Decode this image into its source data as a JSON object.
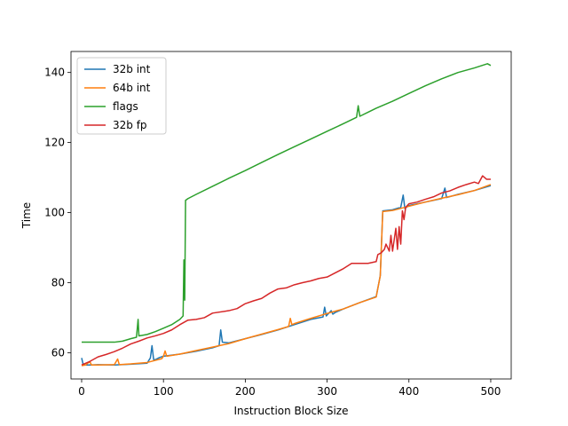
{
  "chart_data": {
    "type": "line",
    "title": "",
    "xlabel": "Instruction Block Size",
    "ylabel": "Time",
    "xlim": [
      -13,
      525
    ],
    "ylim": [
      52.5,
      146
    ],
    "xticks": [
      0,
      100,
      200,
      300,
      400,
      500
    ],
    "yticks": [
      60,
      80,
      100,
      120,
      140
    ],
    "grid": false,
    "legend_position": "upper-left",
    "series": [
      {
        "name": "32b int",
        "color": "#1f77b4",
        "points": [
          [
            0,
            58.5
          ],
          [
            2,
            56.5
          ],
          [
            10,
            56.5
          ],
          [
            20,
            56.6
          ],
          [
            40,
            56.5
          ],
          [
            60,
            56.7
          ],
          [
            80,
            57.0
          ],
          [
            84,
            58.5
          ],
          [
            86,
            62
          ],
          [
            88,
            58
          ],
          [
            90,
            58
          ],
          [
            95,
            58.6
          ],
          [
            100,
            59.0
          ],
          [
            120,
            59.6
          ],
          [
            140,
            60.4
          ],
          [
            160,
            61.4
          ],
          [
            168,
            62
          ],
          [
            170,
            66.5
          ],
          [
            172,
            63
          ],
          [
            180,
            62.8
          ],
          [
            200,
            64.0
          ],
          [
            220,
            65.2
          ],
          [
            240,
            66.5
          ],
          [
            260,
            68.0
          ],
          [
            280,
            69.5
          ],
          [
            295,
            70.2
          ],
          [
            297,
            73
          ],
          [
            299,
            70.5
          ],
          [
            305,
            72
          ],
          [
            307,
            71
          ],
          [
            310,
            71.5
          ],
          [
            320,
            72.5
          ],
          [
            340,
            74.3
          ],
          [
            360,
            76.0
          ],
          [
            365,
            82
          ],
          [
            368,
            100.5
          ],
          [
            380,
            100.8
          ],
          [
            390,
            101.5
          ],
          [
            393,
            105
          ],
          [
            395,
            101.2
          ],
          [
            400,
            102.0
          ],
          [
            420,
            103.0
          ],
          [
            440,
            104.0
          ],
          [
            444,
            107
          ],
          [
            446,
            104.3
          ],
          [
            460,
            105.2
          ],
          [
            480,
            106.3
          ],
          [
            500,
            107.7
          ]
        ]
      },
      {
        "name": "64b int",
        "color": "#ff7f0e",
        "points": [
          [
            0,
            56.3
          ],
          [
            5,
            56.5
          ],
          [
            10,
            57.5
          ],
          [
            12,
            56.5
          ],
          [
            20,
            56.5
          ],
          [
            40,
            56.6
          ],
          [
            44,
            58.2
          ],
          [
            46,
            56.6
          ],
          [
            60,
            56.8
          ],
          [
            80,
            57.2
          ],
          [
            90,
            57.8
          ],
          [
            98,
            58.3
          ],
          [
            100,
            59.0
          ],
          [
            102,
            60.5
          ],
          [
            104,
            59.0
          ],
          [
            120,
            59.6
          ],
          [
            140,
            60.6
          ],
          [
            160,
            61.6
          ],
          [
            180,
            62.6
          ],
          [
            200,
            64.0
          ],
          [
            220,
            65.3
          ],
          [
            240,
            66.6
          ],
          [
            253,
            67.5
          ],
          [
            255,
            69.8
          ],
          [
            257,
            68.0
          ],
          [
            260,
            68.3
          ],
          [
            280,
            69.8
          ],
          [
            300,
            71.2
          ],
          [
            320,
            72.5
          ],
          [
            340,
            74.3
          ],
          [
            360,
            75.9
          ],
          [
            365,
            82
          ],
          [
            368,
            100.3
          ],
          [
            380,
            100.6
          ],
          [
            400,
            101.8
          ],
          [
            420,
            103.0
          ],
          [
            440,
            104.1
          ],
          [
            460,
            105.1
          ],
          [
            480,
            106.3
          ],
          [
            500,
            108.0
          ]
        ]
      },
      {
        "name": "flags",
        "color": "#2ca02c",
        "points": [
          [
            0,
            63
          ],
          [
            20,
            63
          ],
          [
            40,
            63
          ],
          [
            50,
            63.3
          ],
          [
            60,
            64
          ],
          [
            67,
            64.4
          ],
          [
            69,
            69.5
          ],
          [
            70,
            64.8
          ],
          [
            80,
            65.2
          ],
          [
            90,
            66
          ],
          [
            100,
            67
          ],
          [
            110,
            68
          ],
          [
            120,
            69.5
          ],
          [
            124,
            70.5
          ],
          [
            125,
            86.5
          ],
          [
            126,
            75
          ],
          [
            127,
            103.5
          ],
          [
            130,
            104.0
          ],
          [
            140,
            105.2
          ],
          [
            160,
            107.5
          ],
          [
            180,
            109.8
          ],
          [
            200,
            112.0
          ],
          [
            220,
            114.3
          ],
          [
            240,
            116.6
          ],
          [
            260,
            118.8
          ],
          [
            280,
            121.0
          ],
          [
            300,
            123.2
          ],
          [
            320,
            125.4
          ],
          [
            336,
            127.2
          ],
          [
            338,
            130.5
          ],
          [
            340,
            127.5
          ],
          [
            360,
            129.8
          ],
          [
            380,
            131.8
          ],
          [
            400,
            134.0
          ],
          [
            420,
            136.2
          ],
          [
            440,
            138.2
          ],
          [
            460,
            140.0
          ],
          [
            480,
            141.3
          ],
          [
            496,
            142.5
          ],
          [
            500,
            142.0
          ]
        ]
      },
      {
        "name": "32b fp",
        "color": "#d62728",
        "points": [
          [
            0,
            56.5
          ],
          [
            10,
            57.5
          ],
          [
            20,
            58.8
          ],
          [
            30,
            59.5
          ],
          [
            40,
            60.3
          ],
          [
            50,
            61.3
          ],
          [
            60,
            62.5
          ],
          [
            70,
            63.3
          ],
          [
            80,
            64.2
          ],
          [
            90,
            64.8
          ],
          [
            100,
            65.5
          ],
          [
            110,
            66.5
          ],
          [
            120,
            68.0
          ],
          [
            130,
            69.3
          ],
          [
            140,
            69.5
          ],
          [
            150,
            70.0
          ],
          [
            160,
            71.3
          ],
          [
            180,
            72.0
          ],
          [
            190,
            72.6
          ],
          [
            200,
            74.0
          ],
          [
            210,
            74.8
          ],
          [
            220,
            75.5
          ],
          [
            230,
            77.0
          ],
          [
            240,
            78.2
          ],
          [
            250,
            78.5
          ],
          [
            260,
            79.4
          ],
          [
            270,
            80.0
          ],
          [
            280,
            80.5
          ],
          [
            290,
            81.2
          ],
          [
            300,
            81.6
          ],
          [
            320,
            84.0
          ],
          [
            330,
            85.5
          ],
          [
            350,
            85.5
          ],
          [
            360,
            86.0
          ],
          [
            362,
            88.0
          ],
          [
            366,
            88.5
          ],
          [
            370,
            89.5
          ],
          [
            372,
            91.0
          ],
          [
            376,
            89.0
          ],
          [
            378,
            93.5
          ],
          [
            380,
            89.0
          ],
          [
            384,
            95.5
          ],
          [
            386,
            89.5
          ],
          [
            388,
            96.0
          ],
          [
            390,
            91.0
          ],
          [
            392,
            100.5
          ],
          [
            394,
            98.0
          ],
          [
            396,
            101.5
          ],
          [
            400,
            102.5
          ],
          [
            410,
            103.0
          ],
          [
            420,
            103.8
          ],
          [
            430,
            104.5
          ],
          [
            440,
            105.6
          ],
          [
            450,
            106.2
          ],
          [
            460,
            107.2
          ],
          [
            470,
            108.0
          ],
          [
            480,
            108.7
          ],
          [
            485,
            108.3
          ],
          [
            490,
            110.5
          ],
          [
            495,
            109.5
          ],
          [
            500,
            109.5
          ]
        ]
      }
    ]
  }
}
